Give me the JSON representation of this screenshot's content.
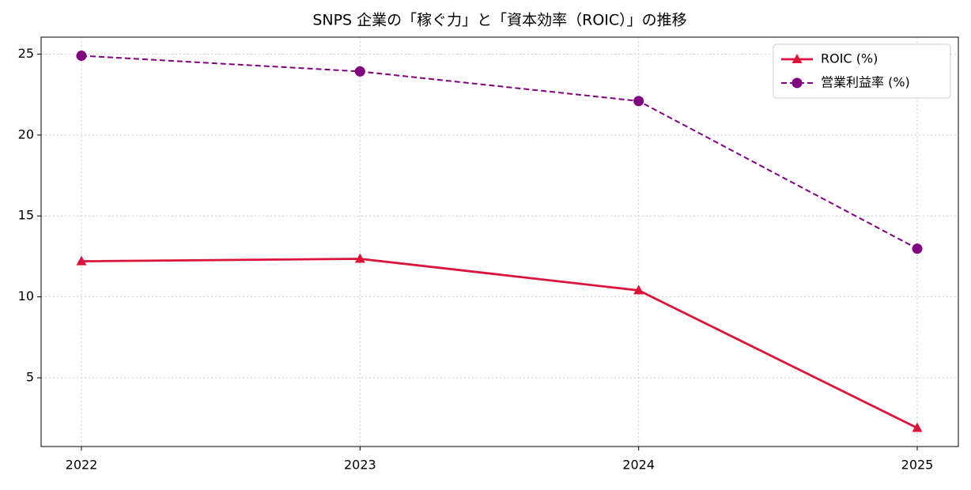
{
  "chart_data": {
    "type": "line",
    "title": "SNPS 企業の「稼ぐ力」と「資本効率（ROIC）」の推移",
    "categories": [
      "2022",
      "2023",
      "2024",
      "2025"
    ],
    "series": [
      {
        "name": "ROIC (%)",
        "color": "#dc143c",
        "marker": "triangle",
        "dash": "solid",
        "values": [
          12.2,
          12.35,
          10.4,
          1.9
        ]
      },
      {
        "name": "営業利益率 (%)",
        "color": "#800080",
        "marker": "circle",
        "dash": "dashed",
        "values": [
          24.9,
          23.93,
          22.1,
          12.98
        ]
      }
    ],
    "ylim": [
      0.75,
      26.05
    ],
    "yticks": [
      5,
      10,
      15,
      20,
      25
    ],
    "grid": true,
    "legend": "upper right"
  }
}
